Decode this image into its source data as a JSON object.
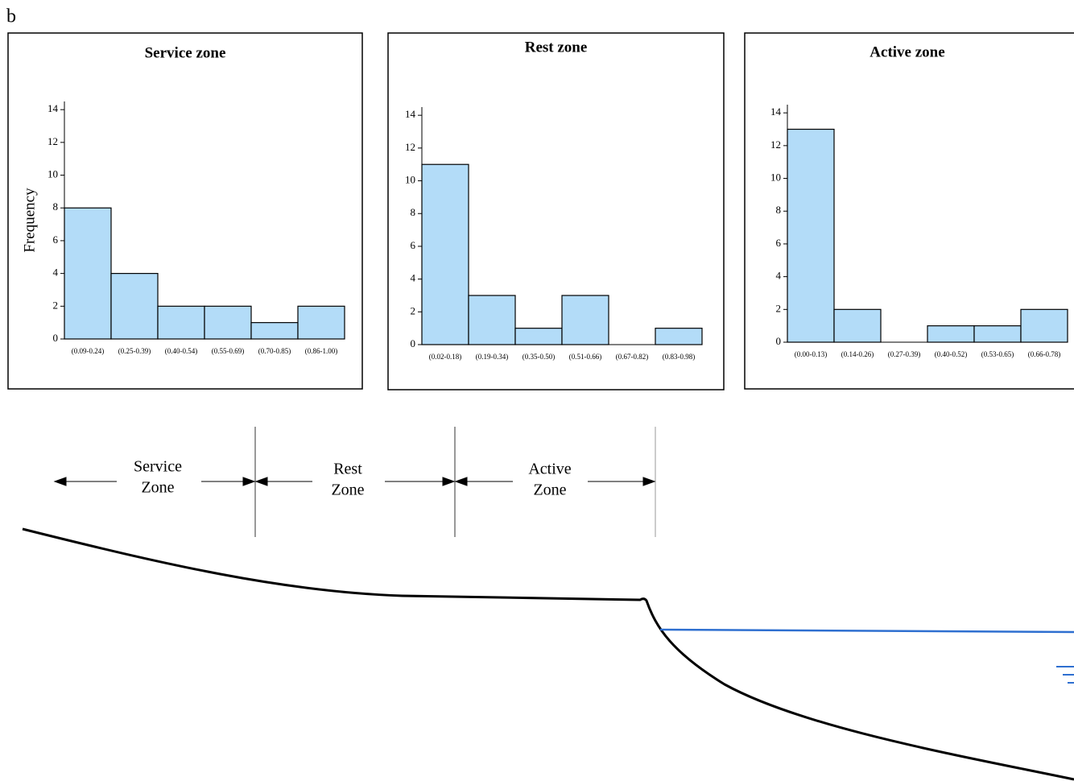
{
  "panel_label": "b",
  "zones": [
    [
      "Service",
      "Zone"
    ],
    [
      "Rest",
      "Zone"
    ],
    [
      "Active",
      "Zone"
    ]
  ],
  "chart_data": [
    {
      "type": "bar",
      "title": "Service zone",
      "y_label": "Frequency",
      "categories": [
        "(0.09-0.24)",
        "(0.25-0.39)",
        "(0.40-0.54)",
        "(0.55-0.69)",
        "(0.70-0.85)",
        "(0.86-1.00)"
      ],
      "values": [
        8,
        4,
        2,
        2,
        1,
        2
      ],
      "color": "#b3dcf8",
      "ylim": [
        0,
        14.5
      ],
      "yticks": [
        0,
        2,
        4,
        6,
        8,
        10,
        12,
        14
      ]
    },
    {
      "type": "bar",
      "title": "Rest zone",
      "categories": [
        "(0.02-0.18)",
        "(0.19-0.34)",
        "(0.35-0.50)",
        "(0.51-0.66)",
        "(0.67-0.82)",
        "(0.83-0.98)"
      ],
      "values": [
        11,
        3,
        1,
        3,
        0,
        1
      ],
      "color": "#b3dcf8",
      "ylim": [
        0,
        14.5
      ],
      "yticks": [
        0,
        2,
        4,
        6,
        8,
        10,
        12,
        14
      ]
    },
    {
      "type": "bar",
      "title": "Active zone",
      "categories": [
        "(0.00-0.13)",
        "(0.14-0.26)",
        "(0.27-0.39)",
        "(0.40-0.52)",
        "(0.53-0.65)",
        "(0.66-0.78)"
      ],
      "values": [
        13,
        2,
        0,
        1,
        1,
        2
      ],
      "color": "#b3dcf8",
      "ylim": [
        0,
        14.5
      ],
      "yticks": [
        0,
        2,
        4,
        6,
        8,
        10,
        12,
        14
      ]
    }
  ]
}
